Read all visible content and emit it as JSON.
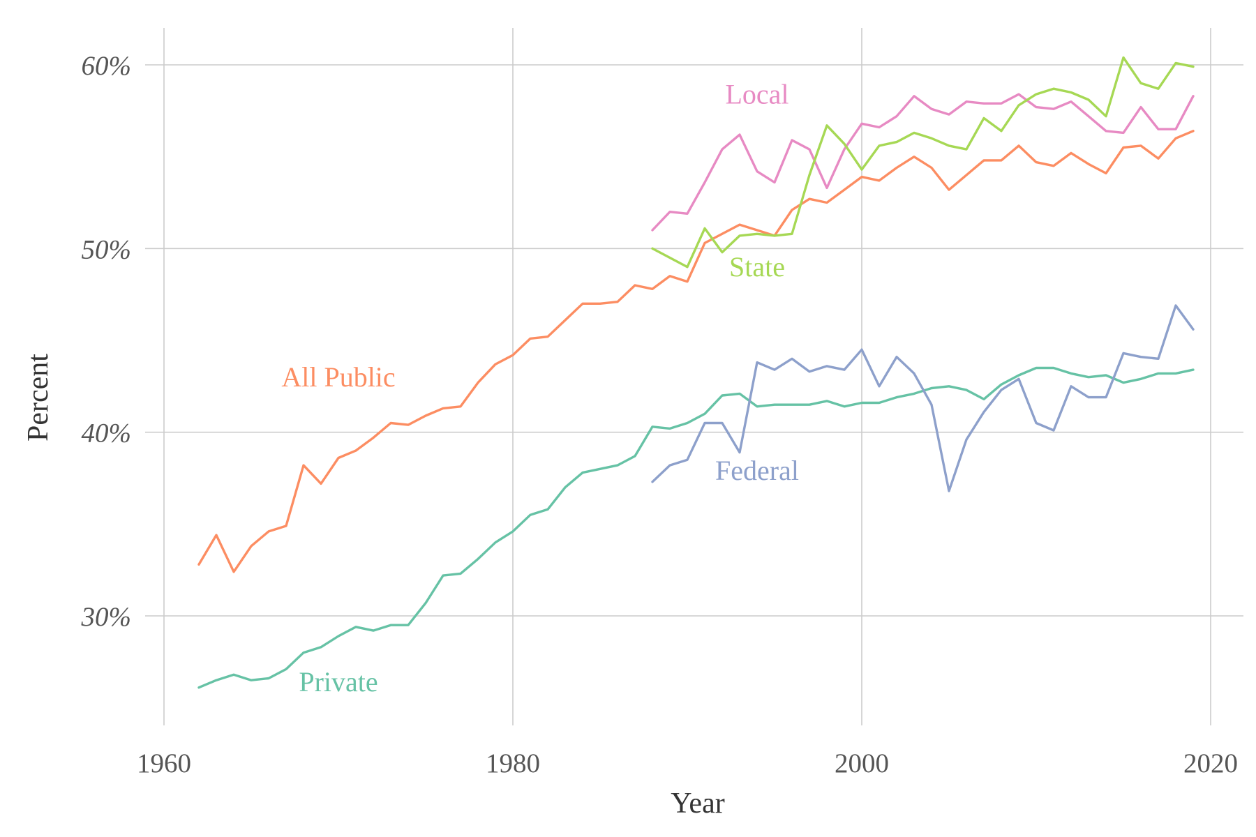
{
  "chart_data": {
    "type": "line",
    "xlabel": "Year",
    "ylabel": "Percent",
    "xlim": [
      1960,
      2020
    ],
    "ylim": [
      24,
      62
    ],
    "x_ticks": [
      1960,
      1980,
      2000,
      2020
    ],
    "x_tick_labels": [
      "1960",
      "1980",
      "2000",
      "2020"
    ],
    "y_ticks": [
      30,
      40,
      50,
      60
    ],
    "y_tick_labels": [
      "30%",
      "40%",
      "50%",
      "60%"
    ],
    "grid": true,
    "legend": "direct labels",
    "series": [
      {
        "name": "All Public",
        "color": "#fc8d62",
        "label_at": [
          1970,
          42.5
        ],
        "x": [
          1962,
          1963,
          1964,
          1965,
          1966,
          1967,
          1968,
          1969,
          1970,
          1971,
          1972,
          1973,
          1974,
          1975,
          1976,
          1977,
          1978,
          1979,
          1980,
          1981,
          1982,
          1983,
          1984,
          1985,
          1986,
          1987,
          1988,
          1989,
          1990,
          1991,
          1992,
          1993,
          1994,
          1995,
          1996,
          1997,
          1998,
          1999,
          2000,
          2001,
          2002,
          2003,
          2004,
          2005,
          2006,
          2007,
          2008,
          2009,
          2010,
          2011,
          2012,
          2013,
          2014,
          2015,
          2016,
          2017,
          2018,
          2019
        ],
        "values": [
          32.8,
          34.4,
          32.4,
          33.8,
          34.6,
          34.9,
          38.2,
          37.2,
          38.6,
          39.0,
          39.7,
          40.5,
          40.4,
          40.9,
          41.3,
          41.4,
          42.7,
          43.7,
          44.2,
          45.1,
          45.2,
          46.1,
          47.0,
          47.0,
          47.1,
          48.0,
          47.8,
          48.5,
          48.2,
          50.3,
          50.8,
          51.3,
          51.0,
          50.7,
          52.1,
          52.7,
          52.5,
          53.2,
          53.9,
          53.7,
          54.4,
          55.0,
          54.4,
          53.2,
          54.0,
          54.8,
          54.8,
          55.6,
          54.7,
          54.5,
          55.2,
          54.6,
          54.1,
          55.5,
          55.6,
          54.9,
          56.0,
          56.4
        ]
      },
      {
        "name": "Private",
        "color": "#66c2a5",
        "label_at": [
          1970,
          25.9
        ],
        "x": [
          1962,
          1963,
          1964,
          1965,
          1966,
          1967,
          1968,
          1969,
          1970,
          1971,
          1972,
          1973,
          1974,
          1975,
          1976,
          1977,
          1978,
          1979,
          1980,
          1981,
          1982,
          1983,
          1984,
          1985,
          1986,
          1987,
          1988,
          1989,
          1990,
          1991,
          1992,
          1993,
          1994,
          1995,
          1996,
          1997,
          1998,
          1999,
          2000,
          2001,
          2002,
          2003,
          2004,
          2005,
          2006,
          2007,
          2008,
          2009,
          2010,
          2011,
          2012,
          2013,
          2014,
          2015,
          2016,
          2017,
          2018,
          2019
        ],
        "values": [
          26.1,
          26.5,
          26.8,
          26.5,
          26.6,
          27.1,
          28.0,
          28.3,
          28.9,
          29.4,
          29.2,
          29.5,
          29.5,
          30.7,
          32.2,
          32.3,
          33.1,
          34.0,
          34.6,
          35.5,
          35.8,
          37.0,
          37.8,
          38.0,
          38.2,
          38.7,
          40.3,
          40.2,
          40.5,
          41.0,
          42.0,
          42.1,
          41.4,
          41.5,
          41.5,
          41.5,
          41.7,
          41.4,
          41.6,
          41.6,
          41.9,
          42.1,
          42.4,
          42.5,
          42.3,
          41.8,
          42.6,
          43.1,
          43.5,
          43.5,
          43.2,
          43.0,
          43.1,
          42.7,
          42.9,
          43.2,
          43.2,
          43.4
        ]
      },
      {
        "name": "Local",
        "color": "#e78ac3",
        "label_at": [
          1994,
          57.9
        ],
        "x": [
          1988,
          1989,
          1990,
          1991,
          1992,
          1993,
          1994,
          1995,
          1996,
          1997,
          1998,
          1999,
          2000,
          2001,
          2002,
          2003,
          2004,
          2005,
          2006,
          2007,
          2008,
          2009,
          2010,
          2011,
          2012,
          2013,
          2014,
          2015,
          2016,
          2017,
          2018,
          2019
        ],
        "values": [
          51.0,
          52.0,
          51.9,
          53.6,
          55.4,
          56.2,
          54.2,
          53.6,
          55.9,
          55.4,
          53.3,
          55.4,
          56.8,
          56.6,
          57.2,
          58.3,
          57.6,
          57.3,
          58.0,
          57.9,
          57.9,
          58.4,
          57.7,
          57.6,
          58.0,
          57.2,
          56.4,
          56.3,
          57.7,
          56.5,
          56.5,
          58.3
        ]
      },
      {
        "name": "State",
        "color": "#a6d854",
        "label_at": [
          1994,
          48.5
        ],
        "x": [
          1988,
          1989,
          1990,
          1991,
          1992,
          1993,
          1994,
          1995,
          1996,
          1997,
          1998,
          1999,
          2000,
          2001,
          2002,
          2003,
          2004,
          2005,
          2006,
          2007,
          2008,
          2009,
          2010,
          2011,
          2012,
          2013,
          2014,
          2015,
          2016,
          2017,
          2018,
          2019
        ],
        "values": [
          50.0,
          49.5,
          49.0,
          51.1,
          49.8,
          50.7,
          50.8,
          50.7,
          50.8,
          54.0,
          56.7,
          55.7,
          54.3,
          55.6,
          55.8,
          56.3,
          56.0,
          55.6,
          55.4,
          57.1,
          56.4,
          57.8,
          58.4,
          58.7,
          58.5,
          58.1,
          57.2,
          60.4,
          59.0,
          58.7,
          60.1,
          59.9
        ]
      },
      {
        "name": "Federal",
        "color": "#8da0cb",
        "label_at": [
          1994,
          37.4
        ],
        "x": [
          1988,
          1989,
          1990,
          1991,
          1992,
          1993,
          1994,
          1995,
          1996,
          1997,
          1998,
          1999,
          2000,
          2001,
          2002,
          2003,
          2004,
          2005,
          2006,
          2007,
          2008,
          2009,
          2010,
          2011,
          2012,
          2013,
          2014,
          2015,
          2016,
          2017,
          2018,
          2019
        ],
        "values": [
          37.3,
          38.2,
          38.5,
          40.5,
          40.5,
          38.9,
          43.8,
          43.4,
          44.0,
          43.3,
          43.6,
          43.4,
          44.5,
          42.5,
          44.1,
          43.2,
          41.5,
          36.8,
          39.6,
          41.1,
          42.3,
          42.9,
          40.5,
          40.1,
          42.5,
          41.9,
          41.9,
          44.3,
          44.1,
          44.0,
          46.9,
          45.6
        ]
      }
    ]
  }
}
